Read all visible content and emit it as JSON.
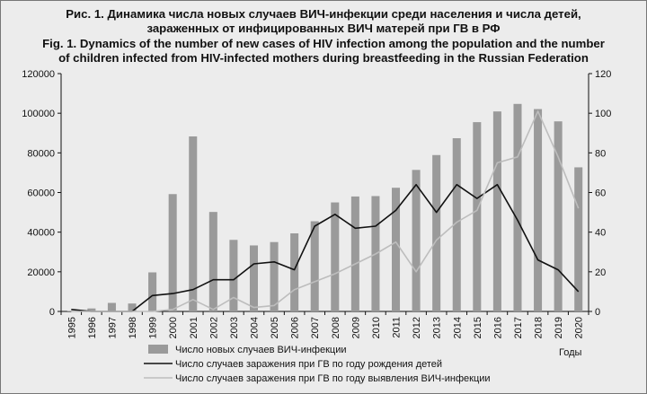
{
  "header": {
    "title_ru_line1": "Рис. 1. Динамика числа новых случаев ВИЧ-инфекции среди населения и числа детей,",
    "title_ru_line2": "зараженных от инфицированных ВИЧ матерей при ГВ в РФ",
    "title_en_line1": "Fig. 1. Dynamics of the number of new cases of HIV infection among the population and the number",
    "title_en_line2": "of children infected from HIV-infected mothers during breastfeeding in the Russian Federation"
  },
  "chart_data": {
    "type": "bar",
    "x": [
      "1995",
      "1996",
      "1997",
      "1998",
      "1999",
      "2000",
      "2001",
      "2002",
      "2003",
      "2004",
      "2005",
      "2006",
      "2007",
      "2008",
      "2009",
      "2010",
      "2011",
      "2012",
      "2013",
      "2014",
      "2015",
      "2016",
      "2017",
      "2018",
      "2019",
      "2020"
    ],
    "xlabel": "Годы",
    "y_left": {
      "range": [
        0,
        120000
      ],
      "ticks": [
        "0",
        "20000",
        "40000",
        "60000",
        "80000",
        "100000",
        "120000"
      ]
    },
    "y_right": {
      "range": [
        0,
        120
      ],
      "ticks": [
        "0",
        "20",
        "40",
        "60",
        "80",
        "100",
        "120"
      ]
    },
    "series": [
      {
        "name": "Число новых случаев ВИЧ-инфекции",
        "kind": "bar",
        "axis": "left",
        "color": "#9a9a9a",
        "values": [
          200,
          1500,
          4300,
          4000,
          19700,
          59200,
          88300,
          50200,
          36100,
          33300,
          35000,
          39400,
          45500,
          55000,
          58000,
          58200,
          62400,
          71400,
          78900,
          87400,
          95500,
          100900,
          104700,
          102100,
          95900,
          72700
        ]
      },
      {
        "name": "Число случаев заражения при ГВ по году рождения детей",
        "kind": "line",
        "axis": "right",
        "color": "#111111",
        "values": [
          1,
          0,
          0,
          0,
          8,
          9,
          11,
          16,
          16,
          24,
          25,
          21,
          43,
          49,
          42,
          43,
          51,
          64,
          50,
          64,
          57,
          64,
          46,
          26,
          21,
          10
        ]
      },
      {
        "name": "Число случаев заражения при ГВ по году выявления ВИЧ-инфекции",
        "kind": "line",
        "axis": "right",
        "color": "#bdbdbd",
        "values": [
          0,
          0,
          0,
          0,
          0,
          1,
          6,
          1,
          7,
          2,
          3,
          11,
          15,
          19,
          24,
          29,
          35,
          20,
          36,
          45,
          51,
          75,
          78,
          101,
          78,
          52
        ]
      }
    ],
    "grid": false,
    "legend": "bottom"
  }
}
